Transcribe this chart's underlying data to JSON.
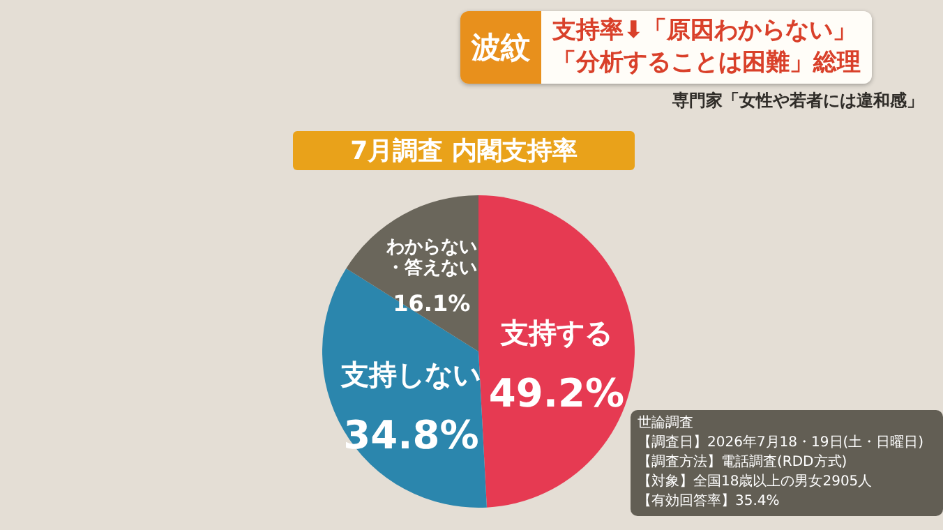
{
  "chart_data": {
    "type": "pie",
    "title": "7月調査 内閣支持率",
    "categories": [
      "支持する",
      "支持しない",
      "わからない・答えない"
    ],
    "values": [
      49.2,
      34.8,
      16.1
    ],
    "colors": [
      "#e63a52",
      "#2b86ad",
      "#6a665b"
    ],
    "value_labels": [
      "49.2%",
      "34.8%",
      "16.1%"
    ],
    "legend": false,
    "annotations": [
      "波紋",
      "支持率⬇「原因わからない」",
      "「分析することは困難」総理",
      "専門家「女性や若者には違和感」",
      "世論調査",
      "【調査日】2026年7月18・19日(土・日曜日)",
      "【調査方法】電話調査(RDD方式)",
      "【対象】全国18歳以上の男女2905人",
      "【有効回答率】35.4%"
    ]
  }
}
